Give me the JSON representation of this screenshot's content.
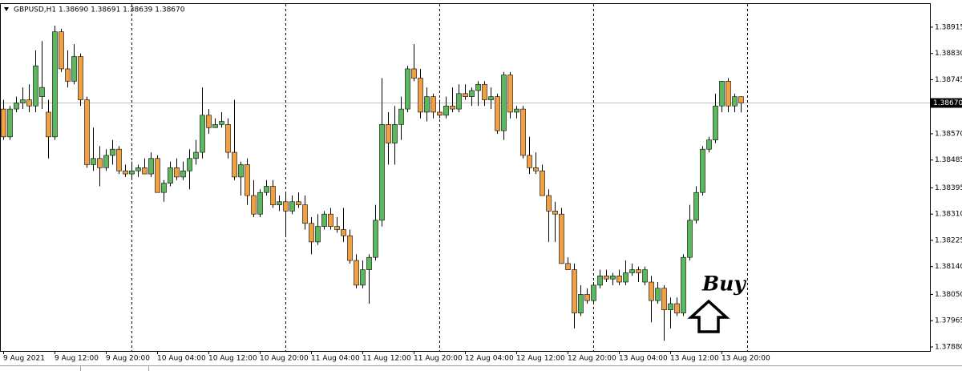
{
  "chart_data": {
    "type": "candlestick",
    "title": "GBPUSD,H1  1.38690 1.38691 1.38639 1.38670",
    "annotation": "Buy",
    "up_color": "#5cb85c",
    "down_color": "#f0a040",
    "current_price": {
      "value": 1.3867,
      "label": "1.38670"
    },
    "ylim": [
      1.37867,
      1.3899
    ],
    "yticks": [
      {
        "value": 1.38915,
        "label": "1.38915"
      },
      {
        "value": 1.3883,
        "label": "1.38830"
      },
      {
        "value": 1.38745,
        "label": "1.38745"
      },
      {
        "value": 1.3857,
        "label": "1.38570"
      },
      {
        "value": 1.38485,
        "label": "1.38485"
      },
      {
        "value": 1.38395,
        "label": "1.38395"
      },
      {
        "value": 1.3831,
        "label": "1.38310"
      },
      {
        "value": 1.38225,
        "label": "1.38225"
      },
      {
        "value": 1.3814,
        "label": "1.38140"
      },
      {
        "value": 1.3805,
        "label": "1.38050"
      },
      {
        "value": 1.37965,
        "label": "1.37965"
      },
      {
        "value": 1.3788,
        "label": "1.37880"
      }
    ],
    "categories": [
      "9 Aug 2021",
      null,
      null,
      null,
      null,
      null,
      null,
      null,
      "9 Aug 12:00",
      null,
      null,
      null,
      null,
      null,
      null,
      null,
      "9 Aug 20:00",
      null,
      null,
      null,
      null,
      null,
      null,
      null,
      "10 Aug 04:00",
      null,
      null,
      null,
      null,
      null,
      null,
      null,
      "10 Aug 12:00",
      null,
      null,
      null,
      null,
      null,
      null,
      null,
      "10 Aug 20:00",
      null,
      null,
      null,
      null,
      null,
      null,
      null,
      "11 Aug 04:00",
      null,
      null,
      null,
      null,
      null,
      null,
      null,
      "11 Aug 12:00",
      null,
      null,
      null,
      null,
      null,
      null,
      null,
      "11 Aug 20:00",
      null,
      null,
      null,
      null,
      null,
      null,
      null,
      "12 Aug 04:00",
      null,
      null,
      null,
      null,
      null,
      null,
      null,
      "12 Aug 12:00",
      null,
      null,
      null,
      null,
      null,
      null,
      null,
      "12 Aug 20:00",
      null,
      null,
      null,
      null,
      null,
      null,
      null,
      "13 Aug 04:00",
      null,
      null,
      null,
      null,
      null,
      null,
      null,
      "13 Aug 12:00",
      null,
      null,
      null,
      null,
      null,
      null,
      null,
      "13 Aug 20:00",
      null,
      null,
      null
    ],
    "open": [
      1.3865,
      1.3856,
      1.3865,
      1.3867,
      1.3868,
      1.3866,
      1.3869,
      1.3864,
      1.3856,
      1.389,
      1.3878,
      1.3874,
      1.3882,
      1.3868,
      1.3847,
      1.3849,
      1.3846,
      1.385,
      1.3852,
      1.3845,
      1.3844,
      1.3845,
      1.3846,
      1.3844,
      1.3849,
      1.3838,
      1.3841,
      1.3846,
      1.3843,
      1.3845,
      1.3849,
      1.3851,
      1.3863,
      1.3859,
      1.386,
      1.386,
      1.3851,
      1.3843,
      1.3847,
      1.3837,
      1.3831,
      1.3838,
      1.384,
      1.3834,
      1.3835,
      1.3832,
      1.3835,
      1.3834,
      1.3828,
      1.3822,
      1.3827,
      1.3831,
      1.3827,
      1.3826,
      1.3824,
      1.3816,
      1.3808,
      1.3813,
      1.3817,
      1.3829,
      1.386,
      1.3854,
      1.386,
      1.3865,
      1.3878,
      1.3875,
      1.3864,
      1.3869,
      1.3864,
      1.3863,
      1.3866,
      1.3865,
      1.387,
      1.3869,
      1.3871,
      1.3873,
      1.3868,
      1.3869,
      1.3858,
      1.3876,
      1.3864,
      1.3865,
      1.385,
      1.3846,
      1.3845,
      1.3837,
      1.3832,
      1.3831,
      1.3815,
      1.3813,
      1.3799,
      1.3805,
      1.3803,
      1.3808,
      1.3811,
      1.381,
      1.3811,
      1.3809,
      1.3812,
      1.3813,
      1.3809,
      1.3809,
      1.3803,
      1.3807,
      1.38,
      1.3802,
      1.3799,
      1.3817,
      1.3829,
      1.3838,
      1.3852,
      1.3855,
      1.3866,
      1.3874,
      1.3866,
      1.3869
    ],
    "high": [
      1.3868,
      1.3866,
      1.3869,
      1.3872,
      1.3873,
      1.3884,
      1.3887,
      1.3868,
      1.3892,
      1.3891,
      1.3884,
      1.3886,
      1.3883,
      1.3869,
      1.3859,
      1.3853,
      1.3852,
      1.3855,
      1.3853,
      1.3847,
      1.3848,
      1.3847,
      1.3849,
      1.3851,
      1.385,
      1.3842,
      1.3848,
      1.3849,
      1.3848,
      1.3852,
      1.3855,
      1.3872,
      1.3865,
      1.3862,
      1.3864,
      1.3862,
      1.3868,
      1.3848,
      1.3849,
      1.3842,
      1.3839,
      1.3842,
      1.3842,
      1.3837,
      1.3838,
      1.3837,
      1.3838,
      1.3837,
      1.383,
      1.3831,
      1.3832,
      1.3833,
      1.383,
      1.3833,
      1.3826,
      1.3818,
      1.3816,
      1.3818,
      1.3834,
      1.3875,
      1.3864,
      1.3866,
      1.3869,
      1.3879,
      1.3886,
      1.3878,
      1.3872,
      1.387,
      1.3868,
      1.3869,
      1.3872,
      1.3873,
      1.3873,
      1.3872,
      1.3874,
      1.3874,
      1.3872,
      1.387,
      1.3877,
      1.3877,
      1.3866,
      1.3866,
      1.3856,
      1.3851,
      1.3847,
      1.3839,
      1.3835,
      1.3833,
      1.3817,
      1.3815,
      1.3808,
      1.3807,
      1.3809,
      1.3813,
      1.3813,
      1.3812,
      1.3813,
      1.3816,
      1.3815,
      1.3814,
      1.3814,
      1.3811,
      1.3809,
      1.3808,
      1.3804,
      1.3804,
      1.3818,
      1.3834,
      1.384,
      1.3853,
      1.3856,
      1.387,
      1.3874,
      1.3875,
      1.387,
      1.38691
    ],
    "low": [
      1.3855,
      1.3855,
      1.3864,
      1.3865,
      1.3864,
      1.3864,
      1.3865,
      1.3849,
      1.3855,
      1.3877,
      1.3872,
      1.3873,
      1.3866,
      1.3846,
      1.3845,
      1.384,
      1.3845,
      1.3847,
      1.3844,
      1.3843,
      1.3842,
      1.3843,
      1.3844,
      1.3843,
      1.3838,
      1.3835,
      1.384,
      1.3842,
      1.3842,
      1.3839,
      1.3847,
      1.3849,
      1.3857,
      1.3859,
      1.3859,
      1.3849,
      1.3842,
      1.3837,
      1.3834,
      1.383,
      1.383,
      1.3837,
      1.3833,
      1.3832,
      1.3824,
      1.3831,
      1.3833,
      1.3826,
      1.3818,
      1.3821,
      1.3826,
      1.3826,
      1.3825,
      1.3822,
      1.3815,
      1.3807,
      1.3807,
      1.3802,
      1.3816,
      1.3827,
      1.3847,
      1.3847,
      1.3855,
      1.3864,
      1.3874,
      1.3862,
      1.3861,
      1.3862,
      1.3862,
      1.3862,
      1.3864,
      1.3864,
      1.3868,
      1.3866,
      1.3866,
      1.3866,
      1.3865,
      1.3857,
      1.3855,
      1.3862,
      1.3862,
      1.3849,
      1.3844,
      1.3844,
      1.3837,
      1.3822,
      1.3822,
      1.3815,
      1.3813,
      1.3794,
      1.3798,
      1.3802,
      1.3802,
      1.3807,
      1.3809,
      1.3808,
      1.3808,
      1.3808,
      1.3811,
      1.3809,
      1.3808,
      1.3796,
      1.3802,
      1.379,
      1.3794,
      1.3798,
      1.3798,
      1.3816,
      1.3828,
      1.3837,
      1.3851,
      1.3854,
      1.3864,
      1.3864,
      1.3864,
      1.38639
    ],
    "close": [
      1.3856,
      1.3865,
      1.3867,
      1.3868,
      1.3866,
      1.3879,
      1.3872,
      1.3856,
      1.389,
      1.3878,
      1.3874,
      1.3882,
      1.3868,
      1.3847,
      1.3849,
      1.3846,
      1.385,
      1.3852,
      1.3845,
      1.3844,
      1.3845,
      1.3846,
      1.3844,
      1.3849,
      1.3838,
      1.3841,
      1.3846,
      1.3843,
      1.3845,
      1.3849,
      1.3851,
      1.3863,
      1.3859,
      1.386,
      1.3861,
      1.3851,
      1.3843,
      1.3847,
      1.3837,
      1.3831,
      1.3838,
      1.384,
      1.3834,
      1.3835,
      1.3832,
      1.3835,
      1.3834,
      1.3828,
      1.3822,
      1.3827,
      1.3831,
      1.3827,
      1.3826,
      1.3824,
      1.3816,
      1.3808,
      1.3813,
      1.3817,
      1.3829,
      1.386,
      1.3854,
      1.386,
      1.3865,
      1.3878,
      1.3875,
      1.3864,
      1.3869,
      1.3864,
      1.3863,
      1.3866,
      1.3865,
      1.387,
      1.3869,
      1.3871,
      1.3873,
      1.3868,
      1.3869,
      1.3858,
      1.3876,
      1.3864,
      1.3865,
      1.385,
      1.3846,
      1.3845,
      1.3837,
      1.3832,
      1.3831,
      1.3815,
      1.3813,
      1.3799,
      1.3805,
      1.3803,
      1.3808,
      1.3811,
      1.381,
      1.3811,
      1.3809,
      1.3812,
      1.3813,
      1.3812,
      1.3813,
      1.3803,
      1.3807,
      1.38,
      1.3802,
      1.3799,
      1.3817,
      1.3829,
      1.3838,
      1.3852,
      1.3855,
      1.3866,
      1.3874,
      1.3866,
      1.3869,
      1.3867
    ]
  }
}
